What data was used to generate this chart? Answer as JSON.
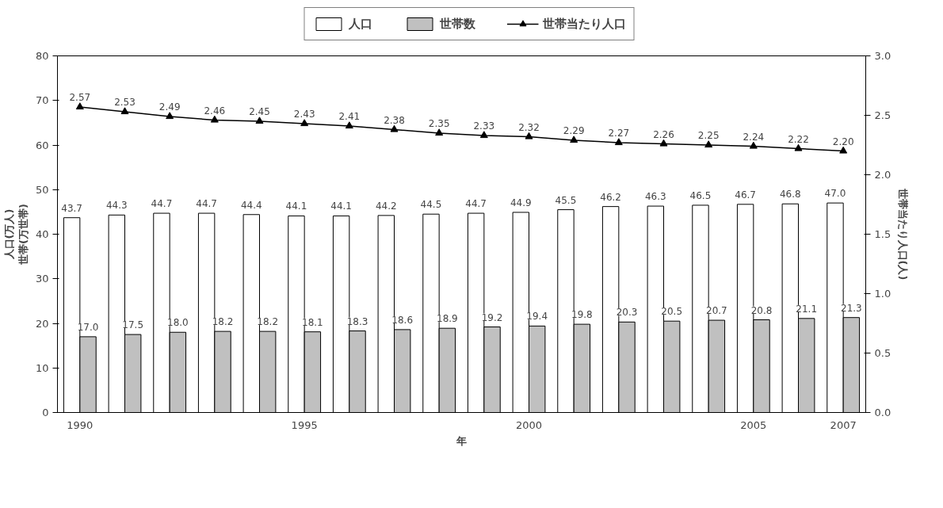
{
  "chart_data": {
    "type": "bar",
    "xlabel": "年",
    "ylabel": "人口(万人)\n世帯(万世帯)",
    "y2label": "世帯当たり人口(人)",
    "categories": [
      "1990",
      null,
      null,
      null,
      null,
      "1995",
      null,
      null,
      null,
      null,
      "2000",
      null,
      null,
      null,
      null,
      "2005",
      null,
      "2007"
    ],
    "series": [
      {
        "name": "人口",
        "color": "#ffffff",
        "values": [
          43.7,
          44.3,
          44.7,
          44.7,
          44.4,
          44.1,
          44.1,
          44.2,
          44.5,
          44.7,
          44.9,
          45.5,
          46.2,
          46.3,
          46.5,
          46.7,
          46.8,
          47.0
        ],
        "value_labels": [
          "43.7",
          "44.3",
          "44.7",
          "44.7",
          "44.4",
          "44.1",
          "44.1",
          "44.2",
          "44.5",
          "44.7",
          "44.9",
          "45.5",
          "46.2",
          "46.3",
          "46.5",
          "46.7",
          "46.8",
          "47.0"
        ]
      },
      {
        "name": "世帯数",
        "color": "#c0c0c0",
        "values": [
          17.0,
          17.5,
          18.0,
          18.2,
          18.2,
          18.1,
          18.3,
          18.6,
          18.9,
          19.2,
          19.4,
          19.8,
          20.3,
          20.5,
          20.7,
          20.8,
          21.1,
          21.3
        ],
        "value_labels": [
          "17.0",
          "17.5",
          "18.0",
          "18.2",
          "18.2",
          "18.1",
          "18.3",
          "18.6",
          "18.9",
          "19.2",
          "19.4",
          "19.8",
          "20.3",
          "20.5",
          "20.7",
          "20.8",
          "21.1",
          "21.3"
        ]
      },
      {
        "name": "世帯当たり人口",
        "type": "line",
        "axis": "y2",
        "color": "#000000",
        "marker": "triangle",
        "values": [
          2.57,
          2.53,
          2.49,
          2.46,
          2.45,
          2.43,
          2.41,
          2.38,
          2.35,
          2.33,
          2.32,
          2.29,
          2.27,
          2.26,
          2.25,
          2.24,
          2.22,
          2.2
        ],
        "value_labels": [
          "2.57",
          "2.53",
          "2.49",
          "2.46",
          "2.45",
          "2.43",
          "2.41",
          "2.38",
          "2.35",
          "2.33",
          "2.32",
          "2.29",
          "2.27",
          "2.26",
          "2.25",
          "2.24",
          "2.22",
          "2.20"
        ]
      }
    ],
    "ylim": [
      0,
      80
    ],
    "yticks": [
      0,
      10,
      20,
      30,
      40,
      50,
      60,
      70,
      80
    ],
    "y2lim": [
      0,
      3
    ],
    "y2ticks": [
      {
        "value": 0,
        "label": "0.0"
      },
      {
        "value": 0.5,
        "label": "0.5"
      },
      {
        "value": 1,
        "label": "1.0"
      },
      {
        "value": 1.5,
        "label": "1.5"
      },
      {
        "value": 2,
        "label": "2.0"
      },
      {
        "value": 2.5,
        "label": "2.5"
      },
      {
        "value": 3,
        "label": "3.0"
      }
    ],
    "grid": false,
    "legend": "top"
  }
}
